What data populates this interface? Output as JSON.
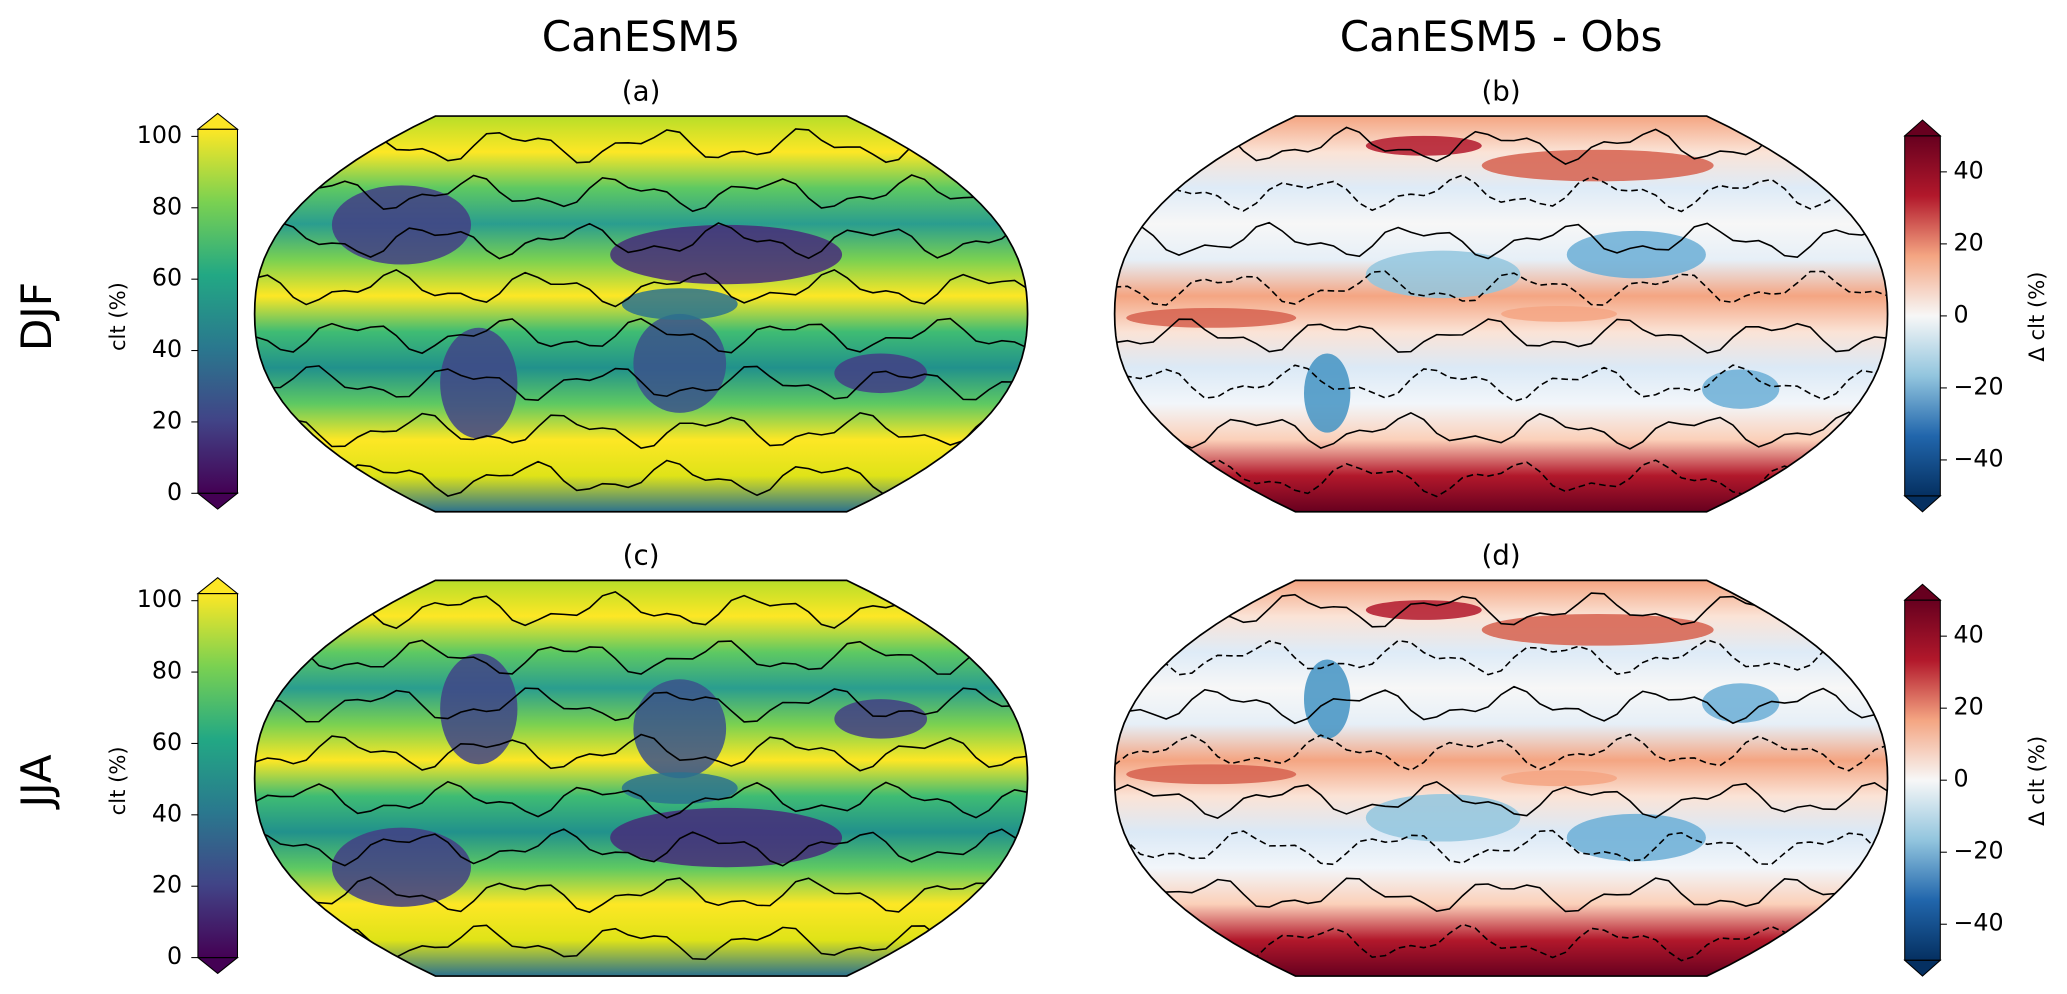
{
  "columns": [
    "CanESM5",
    "CanESM5 - Obs"
  ],
  "rows": [
    "DJF",
    "JJA"
  ],
  "panels": [
    {
      "label": "(a)"
    },
    {
      "label": "(b)"
    },
    {
      "label": "(c)"
    },
    {
      "label": "(d)"
    }
  ],
  "colorbars": [
    {
      "label": "clt (%)",
      "colormap": "viridis",
      "lim": [
        0,
        102
      ],
      "ticks": [
        0,
        20,
        40,
        60,
        80,
        100
      ]
    },
    {
      "label": "Δ clt (%)",
      "colormap": "RdBu_r",
      "lim": [
        -50,
        50
      ],
      "ticks": [
        {
          "value": -40,
          "label": "−40"
        },
        {
          "value": -20,
          "label": "−20"
        },
        0,
        20,
        40
      ]
    }
  ]
}
